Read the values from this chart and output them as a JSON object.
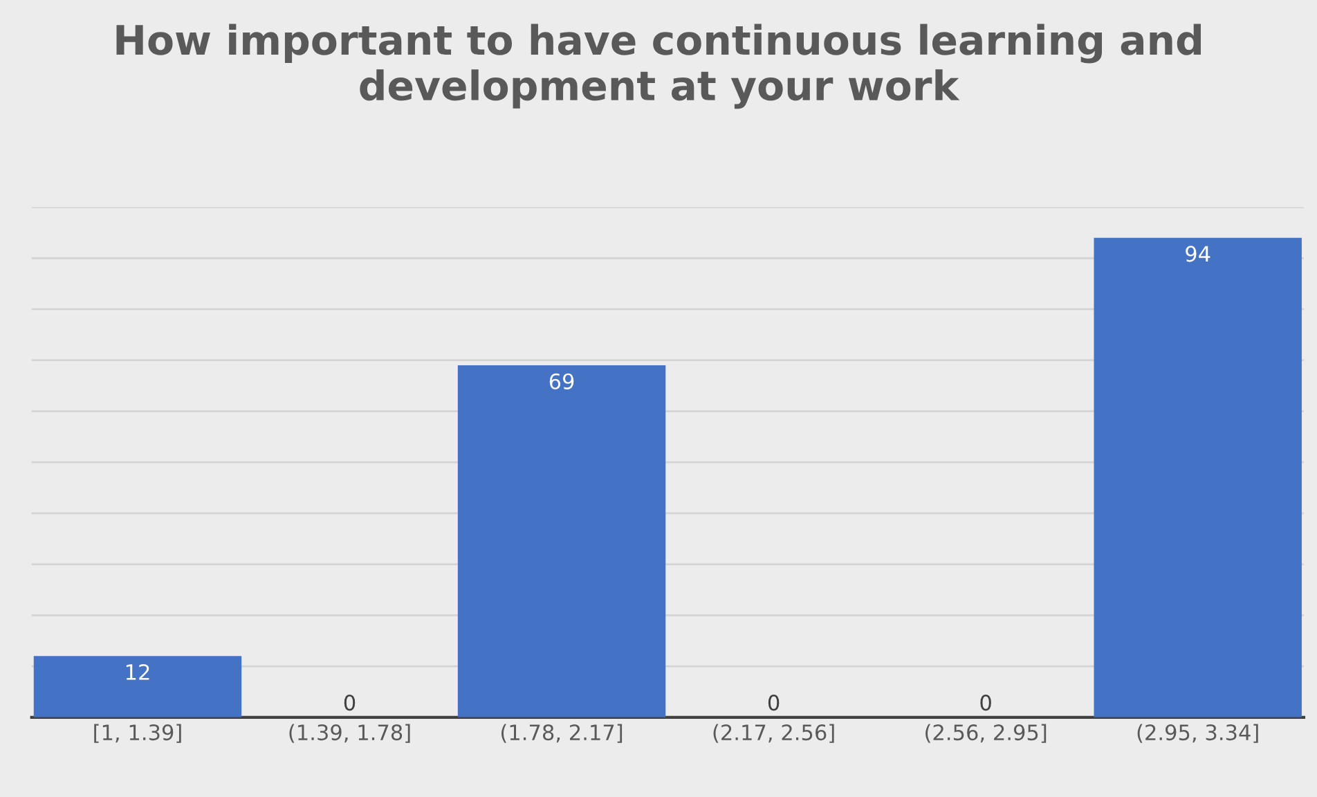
{
  "chart_data": {
    "type": "bar",
    "title": "How important to have continuous learning and development at your work",
    "categories": [
      "[1, 1.39]",
      "(1.39, 1.78]",
      "(1.78, 2.17]",
      "(2.17, 2.56]",
      "(2.56, 2.95]",
      "(2.95, 3.34]"
    ],
    "values": [
      12,
      0,
      69,
      0,
      0,
      94
    ],
    "color": "#4472c4",
    "data_labels": true,
    "ylim": [
      0,
      100
    ],
    "yticks": [
      {
        "value": 0,
        "label": null
      },
      {
        "value": 10,
        "label": null
      },
      {
        "value": 20,
        "label": null
      },
      {
        "value": 30,
        "label": null
      },
      {
        "value": 40,
        "label": null
      },
      {
        "value": 50,
        "label": null
      },
      {
        "value": 60,
        "label": null
      },
      {
        "value": 70,
        "label": null
      },
      {
        "value": 80,
        "label": null
      },
      {
        "value": 90,
        "label": null
      },
      {
        "value": 100,
        "label": null
      }
    ],
    "grid": "y",
    "tick_labels": "x"
  }
}
